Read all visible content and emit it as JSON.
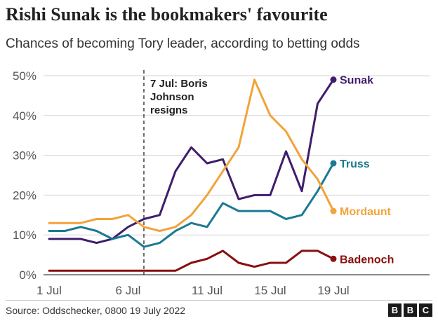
{
  "title": "Rishi Sunak is the bookmakers' favourite",
  "subtitle": "Chances of becoming Tory leader, according to betting odds",
  "source": "Source: Oddschecker, 0800 19 July 2022",
  "logo_letters": [
    "B",
    "B",
    "C"
  ],
  "chart_data": {
    "type": "line",
    "title": "Rishi Sunak is the bookmakers' favourite",
    "subtitle": "Chances of becoming Tory leader, according to betting odds",
    "x": [
      1,
      2,
      3,
      4,
      5,
      6,
      7,
      8,
      9,
      10,
      11,
      12,
      13,
      14,
      15,
      16,
      17,
      18,
      19
    ],
    "x_unit": "day of July 2022",
    "x_ticks": [
      1,
      6,
      11,
      15,
      19
    ],
    "x_tick_labels": [
      "1 Jul",
      "6 Jul",
      "11 Jul",
      "15 Jul",
      "19 Jul"
    ],
    "ylim": [
      0,
      50
    ],
    "y_ticks": [
      0,
      10,
      20,
      30,
      40,
      50
    ],
    "y_tick_labels": [
      "0%",
      "10%",
      "20%",
      "30%",
      "40%",
      "50%"
    ],
    "grid": true,
    "series": [
      {
        "name": "Sunak",
        "color": "#3f1d6b",
        "x": [
          1,
          2,
          3,
          4,
          5,
          6,
          7,
          8,
          9,
          10,
          11,
          12,
          13,
          14,
          15,
          16,
          17,
          18,
          19
        ],
        "values": [
          9,
          9,
          9,
          8,
          9,
          12,
          14,
          15,
          26,
          32,
          28,
          29,
          19,
          20,
          20,
          31,
          21,
          43,
          49
        ]
      },
      {
        "name": "Truss",
        "color": "#1b7a93",
        "x": [
          1,
          2,
          3,
          4,
          5,
          6,
          7,
          8,
          9,
          10,
          11,
          12,
          13,
          14,
          15,
          16,
          17,
          18,
          19
        ],
        "values": [
          11,
          11,
          12,
          11,
          9,
          10,
          7,
          8,
          11,
          13,
          12,
          18,
          16,
          16,
          16,
          14,
          15,
          21,
          28
        ]
      },
      {
        "name": "Mordaunt",
        "color": "#f2a33a",
        "x": [
          1,
          2,
          3,
          4,
          5,
          6,
          7,
          8,
          9,
          10,
          11,
          12,
          13,
          14,
          15,
          16,
          17,
          18,
          19
        ],
        "values": [
          13,
          13,
          13,
          14,
          14,
          15,
          12,
          11,
          12,
          15,
          20,
          26,
          32,
          49,
          40,
          36,
          29,
          24,
          16
        ]
      },
      {
        "name": "Badenoch",
        "color": "#8a0f0f",
        "x": [
          1,
          2,
          3,
          4,
          5,
          6,
          7,
          8,
          9,
          10,
          11,
          12,
          13,
          14,
          15,
          16,
          17,
          18,
          19
        ],
        "values": [
          1,
          1,
          1,
          1,
          1,
          1,
          1,
          1,
          1,
          3,
          4,
          6,
          3,
          2,
          3,
          3,
          6,
          6,
          4
        ]
      }
    ],
    "annotations": [
      {
        "x": 7,
        "text_lines": [
          "7 Jul: Boris",
          "Johnson",
          "resigns"
        ],
        "style": "dashed-vertical"
      }
    ]
  }
}
